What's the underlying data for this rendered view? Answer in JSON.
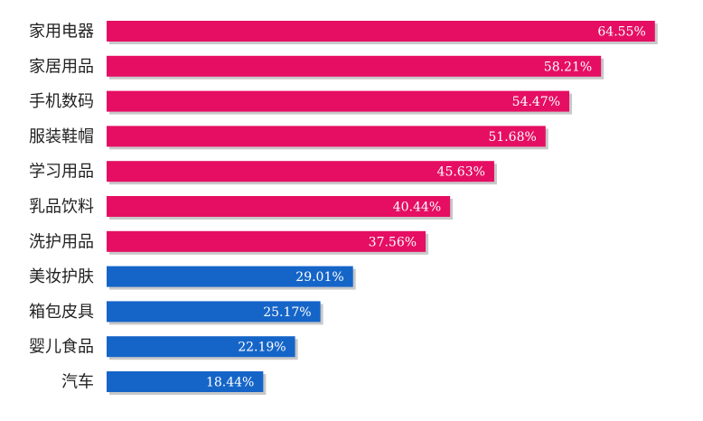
{
  "colors": {
    "high": "#E50E63",
    "low": "#1565C8",
    "shadow": "#9a9a9a",
    "label_text": "#222222",
    "value_text": "#ffffff",
    "background": "#ffffff"
  },
  "chart_data": {
    "type": "bar",
    "orientation": "horizontal",
    "title": "",
    "xlabel": "",
    "ylabel": "",
    "grid": false,
    "legend": "none",
    "xlim": [
      0,
      70
    ],
    "categories": [
      "家用电器",
      "家居用品",
      "手机数码",
      "服装鞋帽",
      "学习用品",
      "乳品饮料",
      "洗护用品",
      "美妆护肤",
      "箱包皮具",
      "婴儿食品",
      "汽车"
    ],
    "values": [
      64.55,
      58.21,
      54.47,
      51.68,
      45.63,
      40.44,
      37.56,
      29.01,
      25.17,
      22.19,
      18.44
    ],
    "value_labels": [
      "64.55%",
      "58.21%",
      "54.47%",
      "51.68%",
      "45.63%",
      "40.44%",
      "37.56%",
      "29.01%",
      "25.17%",
      "22.19%",
      "18.44%"
    ],
    "color_groups": [
      "high",
      "high",
      "high",
      "high",
      "high",
      "high",
      "high",
      "low",
      "low",
      "low",
      "low"
    ]
  }
}
